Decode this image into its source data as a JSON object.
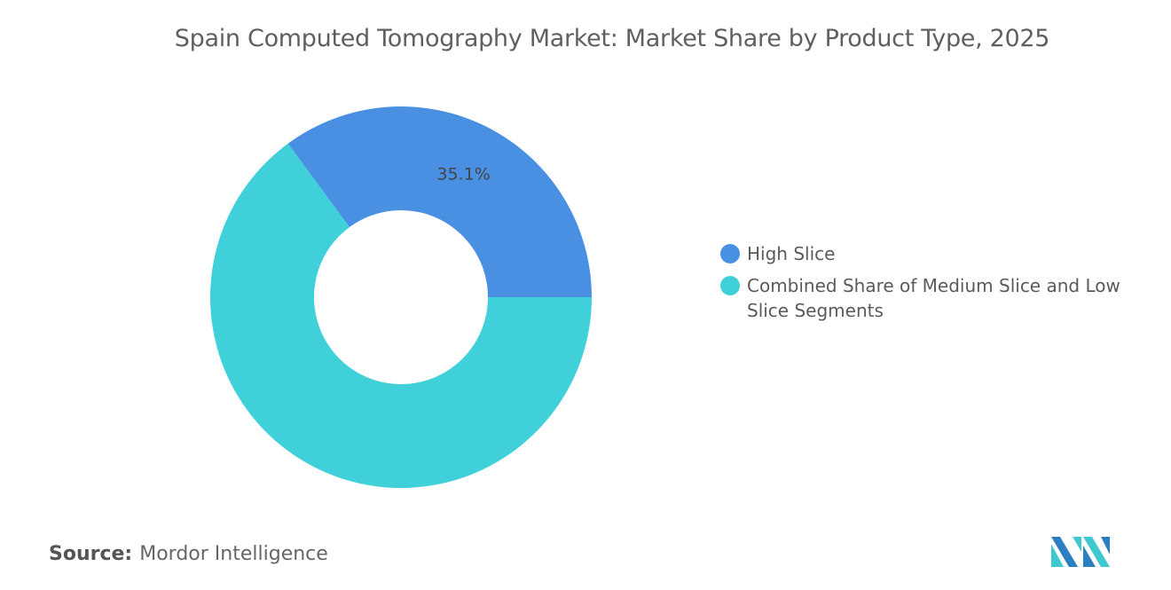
{
  "chart_data": {
    "type": "pie",
    "subtype": "donut",
    "title": "Spain Computed Tomography Market: Market Share by Product Type, 2025",
    "categories": [
      "High Slice",
      "Combined Share of Medium Slice and Low Slice Segments"
    ],
    "values": [
      35.1,
      64.9
    ],
    "data_labels": [
      "35.1%",
      ""
    ],
    "colors": [
      "#4a90e2",
      "#40d0d9"
    ],
    "legend_position": "right"
  },
  "source": {
    "label": "Source:",
    "value": "Mordor Intelligence"
  },
  "logo": {
    "name": "Mordor Intelligence logo",
    "colors": [
      "#2b7fc0",
      "#40c8d0"
    ]
  }
}
